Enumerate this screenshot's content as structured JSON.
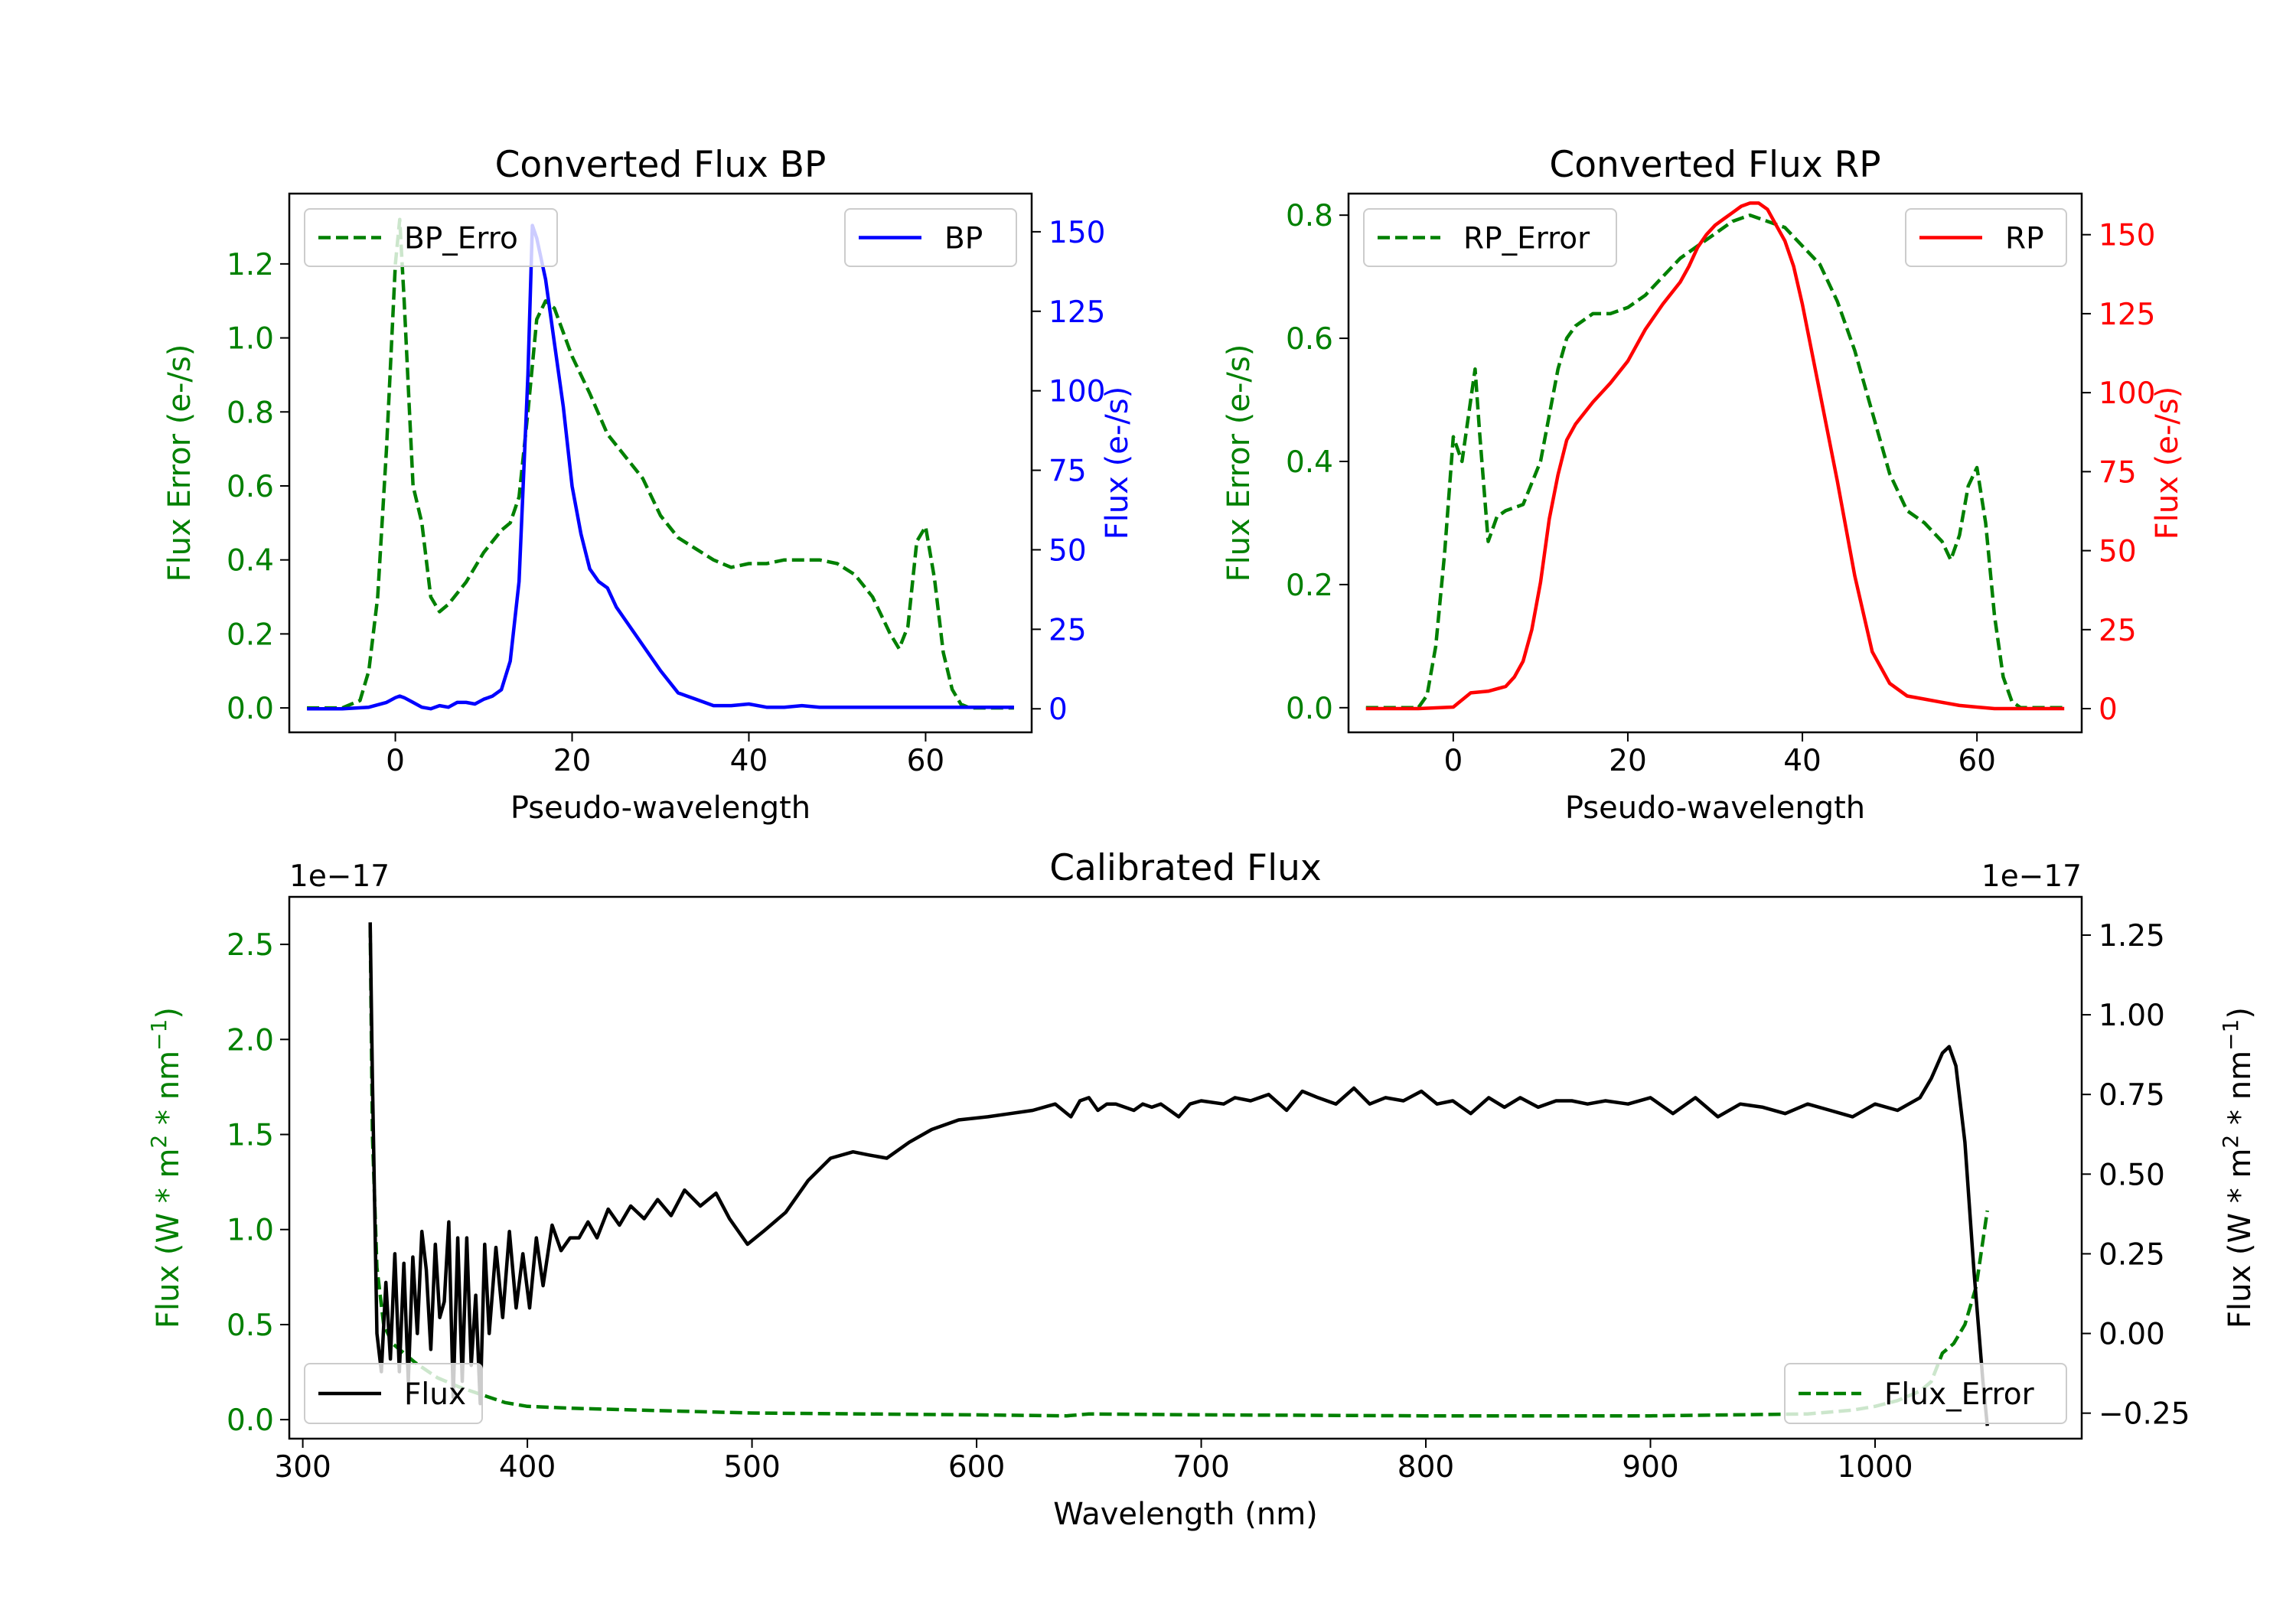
{
  "chart_data": [
    {
      "type": "line",
      "title": "Converted Flux BP",
      "xlabel": "Pseudo-wavelength",
      "xlim": [
        -12,
        72
      ],
      "xticks": [
        0,
        20,
        40,
        60
      ],
      "left_axis": {
        "label": "Flux Error (e-/s)",
        "color": "#008000",
        "ylim": [
          -0.066,
          1.39
        ],
        "ticks": [
          "0.0",
          "0.2",
          "0.4",
          "0.6",
          "0.8",
          "1.0",
          "1.2"
        ]
      },
      "right_axis": {
        "label": "Flux (e-/s)",
        "color": "#0000ff",
        "ylim": [
          -7.4,
          162
        ],
        "ticks": [
          "0",
          "25",
          "50",
          "75",
          "100",
          "125",
          "150"
        ]
      },
      "series": [
        {
          "name": "BP_Error",
          "axis": "left",
          "style": "dashed",
          "color": "#008000",
          "x": [
            -10,
            -6,
            -4,
            -3,
            -2,
            -1,
            0,
            0.5,
            1,
            2,
            3,
            4,
            5,
            6,
            8,
            10,
            12,
            13,
            14,
            15,
            16,
            17,
            18,
            20,
            22,
            24,
            26,
            28,
            30,
            32,
            34,
            36,
            38,
            40,
            42,
            44,
            46,
            48,
            50,
            52,
            54,
            56,
            57,
            58,
            59,
            60,
            61,
            62,
            63,
            64,
            65,
            66,
            68,
            70
          ],
          "values": [
            0,
            0,
            0.02,
            0.1,
            0.3,
            0.7,
            1.2,
            1.32,
            1.1,
            0.6,
            0.5,
            0.3,
            0.26,
            0.28,
            0.34,
            0.42,
            0.48,
            0.5,
            0.57,
            0.8,
            1.05,
            1.1,
            1.08,
            0.95,
            0.85,
            0.74,
            0.68,
            0.62,
            0.52,
            0.46,
            0.43,
            0.4,
            0.38,
            0.39,
            0.39,
            0.4,
            0.4,
            0.4,
            0.39,
            0.36,
            0.3,
            0.2,
            0.16,
            0.22,
            0.45,
            0.49,
            0.35,
            0.15,
            0.05,
            0.01,
            0,
            0,
            0,
            0
          ]
        },
        {
          "name": "BP",
          "axis": "right",
          "style": "solid",
          "color": "#0000ff",
          "x": [
            -10,
            -6,
            -3,
            -1,
            0,
            0.5,
            1,
            2,
            3,
            4,
            5,
            6,
            7,
            8,
            9,
            10,
            11,
            12,
            13,
            14,
            15,
            15.5,
            16,
            17,
            18,
            19,
            20,
            21,
            22,
            23,
            24,
            25,
            26,
            28,
            30,
            32,
            33,
            34,
            36,
            38,
            40,
            42,
            44,
            46,
            48,
            50,
            55,
            60,
            65,
            70
          ],
          "values": [
            0,
            0,
            0.5,
            2,
            3.5,
            4,
            3.5,
            2,
            0.5,
            0,
            1,
            0.5,
            2,
            2,
            1.5,
            3,
            4,
            6,
            15,
            40,
            105,
            152,
            148,
            135,
            115,
            95,
            70,
            55,
            44,
            40,
            38,
            32,
            28,
            20,
            12,
            5,
            4,
            3,
            1,
            1,
            1.5,
            0.5,
            0.5,
            1,
            0.5,
            0.5,
            0.5,
            0.5,
            0.5,
            0.5
          ]
        }
      ],
      "legend": [
        {
          "label": "BP_Erro",
          "location": "upper-left"
        },
        {
          "label": "BP",
          "location": "upper-right"
        }
      ]
    },
    {
      "type": "line",
      "title": "Converted Flux RP",
      "xlabel": "Pseudo-wavelength",
      "xlim": [
        -12,
        72
      ],
      "xticks": [
        0,
        20,
        40,
        60
      ],
      "left_axis": {
        "label": "Flux Error (e-/s)",
        "color": "#008000",
        "ylim": [
          -0.04,
          0.835
        ],
        "ticks": [
          "0.0",
          "0.2",
          "0.4",
          "0.6",
          "0.8"
        ]
      },
      "right_axis": {
        "label": "Flux (e-/s)",
        "color": "#ff0000",
        "ylim": [
          -7.5,
          163
        ],
        "ticks": [
          "0",
          "25",
          "50",
          "75",
          "100",
          "125",
          "150"
        ]
      },
      "series": [
        {
          "name": "RP_Error",
          "axis": "right_hidden",
          "style": "dashed",
          "color": "#008000",
          "x": [
            -10,
            -6,
            -4,
            -3,
            -2,
            -1,
            0,
            1,
            2,
            2.5,
            3,
            4,
            5,
            6,
            8,
            10,
            12,
            13,
            14,
            16,
            18,
            20,
            22,
            24,
            26,
            28,
            30,
            32,
            34,
            36,
            38,
            40,
            42,
            44,
            46,
            48,
            50,
            52,
            54,
            56,
            57,
            58,
            59,
            60,
            61,
            62,
            63,
            64,
            65,
            66,
            68,
            70
          ],
          "values": [
            0,
            0,
            0,
            0.02,
            0.1,
            0.25,
            0.44,
            0.4,
            0.5,
            0.55,
            0.45,
            0.27,
            0.31,
            0.32,
            0.33,
            0.4,
            0.55,
            0.6,
            0.62,
            0.64,
            0.64,
            0.65,
            0.67,
            0.7,
            0.73,
            0.75,
            0.77,
            0.79,
            0.8,
            0.79,
            0.78,
            0.75,
            0.72,
            0.66,
            0.58,
            0.48,
            0.38,
            0.32,
            0.3,
            0.27,
            0.24,
            0.28,
            0.36,
            0.39,
            0.3,
            0.15,
            0.05,
            0.01,
            0,
            0,
            0,
            0
          ]
        },
        {
          "name": "RP",
          "axis": "right",
          "style": "solid",
          "color": "#ff0000",
          "x": [
            -10,
            -4,
            0,
            2,
            4,
            6,
            7,
            8,
            9,
            10,
            11,
            12,
            13,
            14,
            16,
            18,
            20,
            22,
            24,
            26,
            27,
            28,
            29,
            30,
            31,
            32,
            33,
            34,
            35,
            36,
            37,
            38,
            39,
            40,
            42,
            44,
            46,
            48,
            50,
            52,
            54,
            56,
            58,
            60,
            62,
            64,
            66,
            70
          ],
          "values": [
            0,
            0,
            0.5,
            5,
            5.5,
            7,
            10,
            15,
            25,
            40,
            60,
            74,
            85,
            90,
            97,
            103,
            110,
            120,
            128,
            135,
            140,
            146,
            150,
            153,
            155,
            157,
            159,
            160,
            160,
            158,
            153,
            148,
            140,
            128,
            100,
            72,
            42,
            18,
            8,
            4,
            3,
            2,
            1,
            0.5,
            0,
            0,
            0,
            0
          ]
        }
      ],
      "legend": [
        {
          "label": "RP_Error",
          "location": "upper-left"
        },
        {
          "label": "RP",
          "location": "upper-right"
        }
      ]
    },
    {
      "type": "line",
      "title": "Calibrated Flux",
      "xlabel": "Wavelength (nm)",
      "xlim": [
        294,
        1092
      ],
      "xticks": [
        300,
        400,
        500,
        600,
        700,
        800,
        900,
        1000
      ],
      "left_axis": {
        "label": "Flux (W * m2 * nm-1)",
        "color": "#008000",
        "offset_text": "1e−17",
        "ylim": [
          -0.1,
          2.75
        ],
        "ticks": [
          "0.0",
          "0.5",
          "1.0",
          "1.5",
          "2.0",
          "2.5"
        ]
      },
      "right_axis": {
        "label": "Flux (W * m2 * nm-1)",
        "color": "#000000",
        "offset_text": "1e−17",
        "ylim": [
          -0.33,
          1.37
        ],
        "ticks": [
          "−0.25",
          "0.00",
          "0.25",
          "0.50",
          "0.75",
          "1.00",
          "1.25"
        ]
      },
      "series": [
        {
          "name": "Flux_Error",
          "axis": "left",
          "style": "dashed",
          "color": "#008000",
          "x": [
            330,
            331,
            333,
            336,
            340,
            350,
            360,
            370,
            380,
            390,
            400,
            420,
            450,
            500,
            550,
            600,
            640,
            650,
            700,
            800,
            900,
            970,
            990,
            1000,
            1010,
            1020,
            1025,
            1030,
            1035,
            1040,
            1045,
            1050
          ],
          "values": [
            2.6,
            1.5,
            0.8,
            0.5,
            0.4,
            0.3,
            0.22,
            0.17,
            0.13,
            0.09,
            0.07,
            0.06,
            0.05,
            0.035,
            0.03,
            0.025,
            0.02,
            0.03,
            0.025,
            0.02,
            0.02,
            0.03,
            0.05,
            0.07,
            0.1,
            0.15,
            0.2,
            0.35,
            0.4,
            0.5,
            0.7,
            1.1
          ]
        },
        {
          "name": "Flux",
          "axis": "right",
          "style": "solid",
          "color": "#000000",
          "x": [
            330,
            331,
            333,
            335,
            337,
            339,
            341,
            343,
            345,
            347,
            349,
            351,
            353,
            355,
            357,
            359,
            361,
            363,
            365,
            367,
            369,
            371,
            373,
            375,
            377,
            379,
            381,
            383,
            386,
            389,
            392,
            395,
            398,
            401,
            404,
            407,
            411,
            415,
            419,
            423,
            427,
            431,
            436,
            441,
            446,
            452,
            458,
            464,
            470,
            477,
            484,
            490,
            498,
            505,
            515,
            525,
            535,
            545,
            552,
            560,
            570,
            580,
            592,
            605,
            615,
            625,
            635,
            642,
            646,
            650,
            654,
            658,
            662,
            666,
            670,
            674,
            678,
            682,
            686,
            690,
            695,
            700,
            710,
            715,
            722,
            730,
            738,
            745,
            752,
            760,
            768,
            775,
            782,
            790,
            798,
            805,
            812,
            820,
            828,
            835,
            842,
            850,
            858,
            865,
            872,
            880,
            890,
            900,
            910,
            920,
            930,
            940,
            950,
            960,
            970,
            980,
            990,
            1000,
            1010,
            1020,
            1025,
            1030,
            1033,
            1036,
            1040,
            1044,
            1048,
            1050
          ],
          "values": [
            1.29,
            0.8,
            0.0,
            -0.12,
            0.16,
            -0.08,
            0.25,
            -0.12,
            0.22,
            -0.15,
            0.24,
            0.0,
            0.32,
            0.2,
            -0.05,
            0.28,
            0.05,
            0.1,
            0.35,
            -0.2,
            0.3,
            -0.15,
            0.3,
            -0.1,
            0.12,
            -0.22,
            0.28,
            0.0,
            0.27,
            0.05,
            0.32,
            0.08,
            0.25,
            0.08,
            0.3,
            0.15,
            0.34,
            0.26,
            0.3,
            0.3,
            0.35,
            0.3,
            0.39,
            0.34,
            0.4,
            0.36,
            0.42,
            0.37,
            0.45,
            0.4,
            0.44,
            0.36,
            0.28,
            0.32,
            0.38,
            0.48,
            0.55,
            0.57,
            0.56,
            0.55,
            0.6,
            0.64,
            0.67,
            0.68,
            0.69,
            0.7,
            0.72,
            0.68,
            0.73,
            0.74,
            0.7,
            0.72,
            0.72,
            0.71,
            0.7,
            0.72,
            0.71,
            0.72,
            0.7,
            0.68,
            0.72,
            0.73,
            0.72,
            0.74,
            0.73,
            0.75,
            0.7,
            0.76,
            0.74,
            0.72,
            0.77,
            0.72,
            0.74,
            0.73,
            0.76,
            0.72,
            0.73,
            0.69,
            0.74,
            0.71,
            0.74,
            0.71,
            0.73,
            0.73,
            0.72,
            0.73,
            0.72,
            0.74,
            0.69,
            0.74,
            0.68,
            0.72,
            0.71,
            0.69,
            0.72,
            0.7,
            0.68,
            0.72,
            0.7,
            0.74,
            0.8,
            0.88,
            0.9,
            0.84,
            0.6,
            0.2,
            -0.15,
            -0.29
          ]
        }
      ],
      "legend": [
        {
          "label": "Flux",
          "location": "lower-left"
        },
        {
          "label": "Flux_Error",
          "location": "lower-right"
        }
      ]
    }
  ]
}
